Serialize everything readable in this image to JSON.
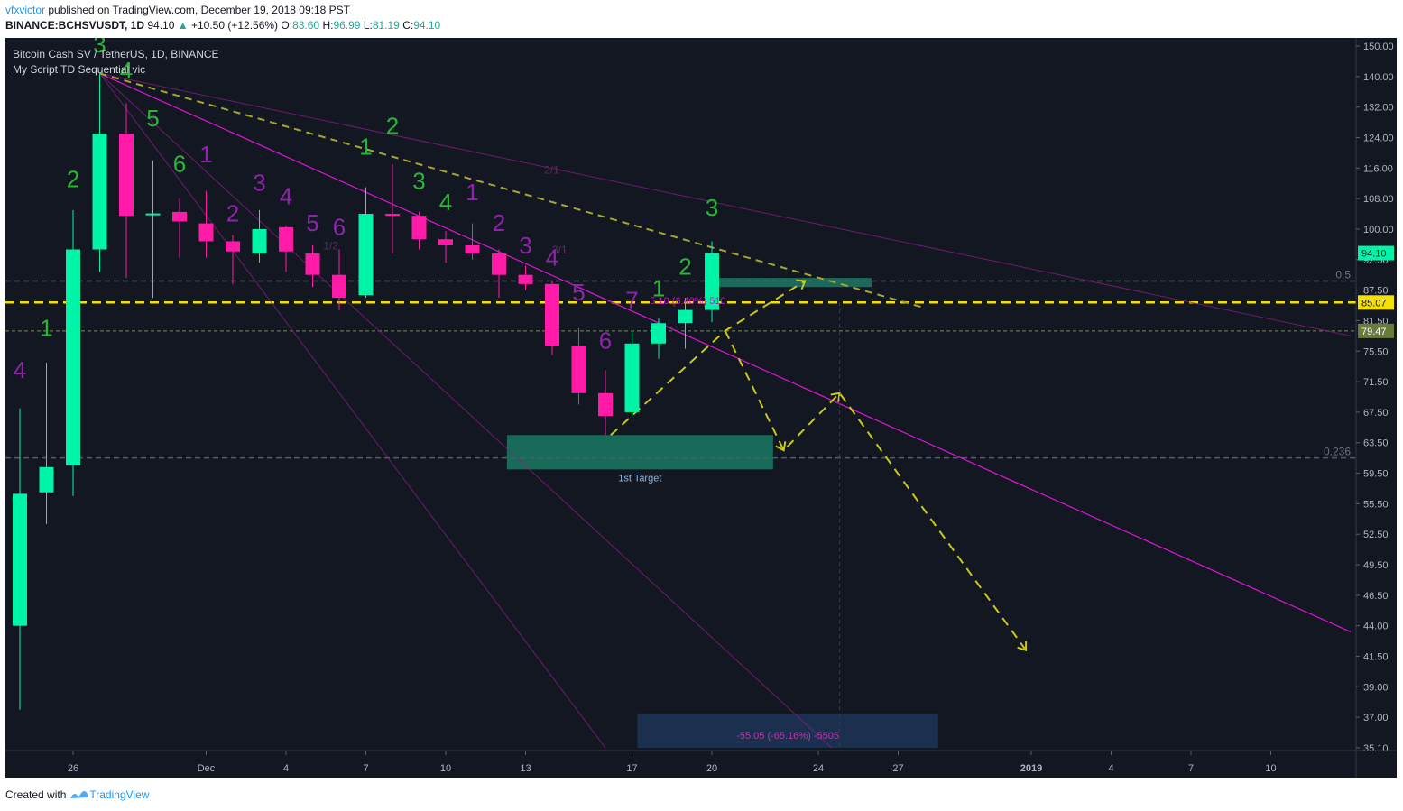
{
  "header": {
    "author": "vfxvictor",
    "published_text": "published on TradingView.com, December 19, 2018 09:18 PST",
    "symbol": "BINANCE:BCHSVUSDT, 1D",
    "last": "94.10",
    "change": "+10.50 (+12.56%)",
    "o_label": "O:",
    "o_val": "83.60",
    "h_label": "H:",
    "h_val": "96.99",
    "l_label": "L:",
    "l_val": "81.19",
    "c_label": "C:",
    "c_val": "94.10"
  },
  "legend": {
    "series_title": "Bitcoin Cash SV / TetherUS, 1D, BINANCE",
    "indicator": "My Script TD Sequential vic"
  },
  "footer": {
    "created_with": "Created with",
    "brand": "TradingView"
  },
  "colors": {
    "background": "#131722",
    "up": "#00f5a8",
    "down": "#ff1aa8",
    "td_green": "#26b834",
    "td_purple": "#8e24aa",
    "trendline": "#d017c8",
    "yellow": "#f5e100",
    "dashed_olive": "#a5a532",
    "target_box": "#1a7a62",
    "projection_box": "#1c3556"
  },
  "chart_data": {
    "type": "candlestick",
    "title": "Bitcoin Cash SV / TetherUS, 1D, BINANCE",
    "x_start_date": "2018-11-24",
    "ylim": [
      35.1,
      150.0
    ],
    "y_ticks": [
      "150.00",
      "140.00",
      "132.00",
      "124.00",
      "116.00",
      "108.00",
      "100.00",
      "92.50",
      "87.50",
      "81.50",
      "75.50",
      "71.50",
      "67.50",
      "63.50",
      "59.50",
      "55.50",
      "52.50",
      "49.50",
      "46.50",
      "44.00",
      "41.50",
      "39.00",
      "37.00",
      "35.10"
    ],
    "x_ticks": [
      {
        "day": 2,
        "label": "26"
      },
      {
        "day": 7,
        "label": "Dec"
      },
      {
        "day": 10,
        "label": "4"
      },
      {
        "day": 13,
        "label": "7"
      },
      {
        "day": 16,
        "label": "10"
      },
      {
        "day": 19,
        "label": "13"
      },
      {
        "day": 23,
        "label": "17"
      },
      {
        "day": 26,
        "label": "20"
      },
      {
        "day": 30,
        "label": "24"
      },
      {
        "day": 33,
        "label": "27"
      },
      {
        "day": 38,
        "label": "2019"
      },
      {
        "day": 41,
        "label": "4"
      },
      {
        "day": 44,
        "label": "7"
      },
      {
        "day": 47,
        "label": "10"
      }
    ],
    "candles": [
      {
        "o": 44.0,
        "h": 68.0,
        "l": 37.5,
        "c": 56.8
      },
      {
        "o": 57.0,
        "h": 74.0,
        "l": 53.5,
        "c": 60.3
      },
      {
        "o": 60.5,
        "h": 105.0,
        "l": 56.5,
        "c": 95.0
      },
      {
        "o": 95.0,
        "h": 141.0,
        "l": 90.5,
        "c": 125.0
      },
      {
        "o": 125.0,
        "h": 133.0,
        "l": 89.5,
        "c": 103.5
      },
      {
        "o": 104.0,
        "h": 118.0,
        "l": 86.0,
        "c": 104.1
      },
      {
        "o": 104.5,
        "h": 108.0,
        "l": 93.0,
        "c": 102.0
      },
      {
        "o": 101.5,
        "h": 110.0,
        "l": 93.0,
        "c": 97.0
      },
      {
        "o": 97.0,
        "h": 98.5,
        "l": 88.5,
        "c": 94.5
      },
      {
        "o": 94.0,
        "h": 105.0,
        "l": 92.0,
        "c": 100.0
      },
      {
        "o": 100.5,
        "h": 101.0,
        "l": 90.5,
        "c": 94.5
      },
      {
        "o": 94.0,
        "h": 96.0,
        "l": 88.0,
        "c": 90.0
      },
      {
        "o": 90.0,
        "h": 95.0,
        "l": 83.5,
        "c": 86.0
      },
      {
        "o": 86.5,
        "h": 111.0,
        "l": 86.0,
        "c": 104.0
      },
      {
        "o": 104.0,
        "h": 117.0,
        "l": 94.0,
        "c": 103.5
      },
      {
        "o": 103.5,
        "h": 104.5,
        "l": 95.0,
        "c": 97.5
      },
      {
        "o": 97.5,
        "h": 99.5,
        "l": 92.0,
        "c": 96.0
      },
      {
        "o": 96.0,
        "h": 101.5,
        "l": 92.5,
        "c": 94.0
      },
      {
        "o": 94.0,
        "h": 95.0,
        "l": 86.0,
        "c": 90.0
      },
      {
        "o": 90.0,
        "h": 91.5,
        "l": 87.5,
        "c": 88.5
      },
      {
        "o": 88.5,
        "h": 89.0,
        "l": 75.0,
        "c": 76.5
      },
      {
        "o": 76.5,
        "h": 80.0,
        "l": 68.5,
        "c": 70.0
      },
      {
        "o": 70.0,
        "h": 73.0,
        "l": 64.5,
        "c": 67.0
      },
      {
        "o": 67.5,
        "h": 79.5,
        "l": 67.0,
        "c": 77.0
      },
      {
        "o": 77.0,
        "h": 82.0,
        "l": 74.5,
        "c": 81.0
      },
      {
        "o": 81.0,
        "h": 86.0,
        "l": 76.0,
        "c": 83.6
      },
      {
        "o": 83.6,
        "h": 96.99,
        "l": 81.19,
        "c": 94.1
      }
    ],
    "td_labels": [
      {
        "i": 0,
        "text": "4",
        "color": "purple",
        "y": 72.0
      },
      {
        "i": 1,
        "text": "1",
        "color": "green",
        "y": 78.5
      },
      {
        "i": 2,
        "text": "2",
        "color": "green",
        "y": 111.0
      },
      {
        "i": 3,
        "text": "3",
        "color": "green",
        "y": 148.0
      },
      {
        "i": 4,
        "text": "4",
        "color": "green",
        "y": 139.5
      },
      {
        "i": 5,
        "text": "5",
        "color": "green",
        "y": 127.0
      },
      {
        "i": 6,
        "text": "6",
        "color": "green",
        "y": 115.0
      },
      {
        "i": 7,
        "text": "1",
        "color": "purple",
        "y": 117.5
      },
      {
        "i": 8,
        "text": "2",
        "color": "purple",
        "y": 102.0
      },
      {
        "i": 9,
        "text": "3",
        "color": "purple",
        "y": 110.0
      },
      {
        "i": 10,
        "text": "4",
        "color": "purple",
        "y": 106.5
      },
      {
        "i": 11,
        "text": "5",
        "color": "purple",
        "y": 99.5
      },
      {
        "i": 12,
        "text": "6",
        "color": "purple",
        "y": 98.5
      },
      {
        "i": 13,
        "text": "1",
        "color": "green",
        "y": 119.5
      },
      {
        "i": 14,
        "text": "2",
        "color": "green",
        "y": 125.0
      },
      {
        "i": 15,
        "text": "3",
        "color": "green",
        "y": 110.5
      },
      {
        "i": 16,
        "text": "4",
        "color": "green",
        "y": 105.0
      },
      {
        "i": 17,
        "text": "1",
        "color": "purple",
        "y": 107.5
      },
      {
        "i": 18,
        "text": "2",
        "color": "purple",
        "y": 99.5
      },
      {
        "i": 19,
        "text": "3",
        "color": "purple",
        "y": 94.0
      },
      {
        "i": 20,
        "text": "4",
        "color": "purple",
        "y": 91.5
      },
      {
        "i": 21,
        "text": "5",
        "color": "purple",
        "y": 85.5
      },
      {
        "i": 22,
        "text": "6",
        "color": "purple",
        "y": 76.0
      },
      {
        "i": 23,
        "text": "7",
        "color": "purple",
        "y": 84.0
      },
      {
        "i": 24,
        "text": "1",
        "color": "green",
        "y": 86.3
      },
      {
        "i": 25,
        "text": "2",
        "color": "green",
        "y": 90.0
      },
      {
        "i": 26,
        "text": "3",
        "color": "green",
        "y": 103.5
      }
    ],
    "hlines": [
      {
        "y": 85.07,
        "style": "yellow",
        "label": "85.07"
      },
      {
        "y": 79.47,
        "style": "green-dash",
        "label": "79.47"
      },
      {
        "y": 89.0,
        "style": "fib",
        "label": "0.5"
      },
      {
        "y": 61.5,
        "style": "fib",
        "label": "0.236"
      }
    ],
    "current_price_label": "94.10",
    "trendlines": [
      {
        "from": [
          3,
          141.0
        ],
        "to": [
          50,
          43.5
        ],
        "style": "solid-bright"
      },
      {
        "from": [
          3,
          141.0
        ],
        "to": [
          50,
          78.5
        ],
        "style": "solid-dim",
        "label": "2/1"
      },
      {
        "from": [
          3,
          141.0
        ],
        "to": [
          22,
          35.1
        ],
        "style": "solid-dim",
        "label": "1/2"
      },
      {
        "from": [
          3,
          141.0
        ],
        "to": [
          30.5,
          35.1
        ],
        "style": "solid-dim",
        "label": "3/1"
      },
      {
        "from": [
          3,
          141.0
        ],
        "to": [
          34,
          84.0
        ],
        "style": "dash-olive"
      }
    ],
    "projection_path": [
      [
        22.2,
        64.5
      ],
      [
        26.5,
        79.5
      ],
      [
        29.5,
        89.0
      ]
    ],
    "projection_path2": [
      [
        26.5,
        79.5
      ],
      [
        28.7,
        62.5
      ],
      [
        30.8,
        70.0
      ],
      [
        37.8,
        42.0
      ]
    ],
    "boxes": [
      {
        "x1": 18.3,
        "x2": 28.3,
        "y1": 60.0,
        "y2": 64.5,
        "style": "target",
        "label": "1st Target"
      },
      {
        "x1": 26.0,
        "x2": 32.0,
        "y1": 88.0,
        "y2": 89.5,
        "style": "target"
      },
      {
        "x1": 23.2,
        "x2": 34.5,
        "y1": 35.1,
        "y2": 37.2,
        "style": "projection",
        "label": "-55.05 (-65.16%) -5505"
      }
    ],
    "measure_label": "5.10 (6.40%) 510"
  }
}
